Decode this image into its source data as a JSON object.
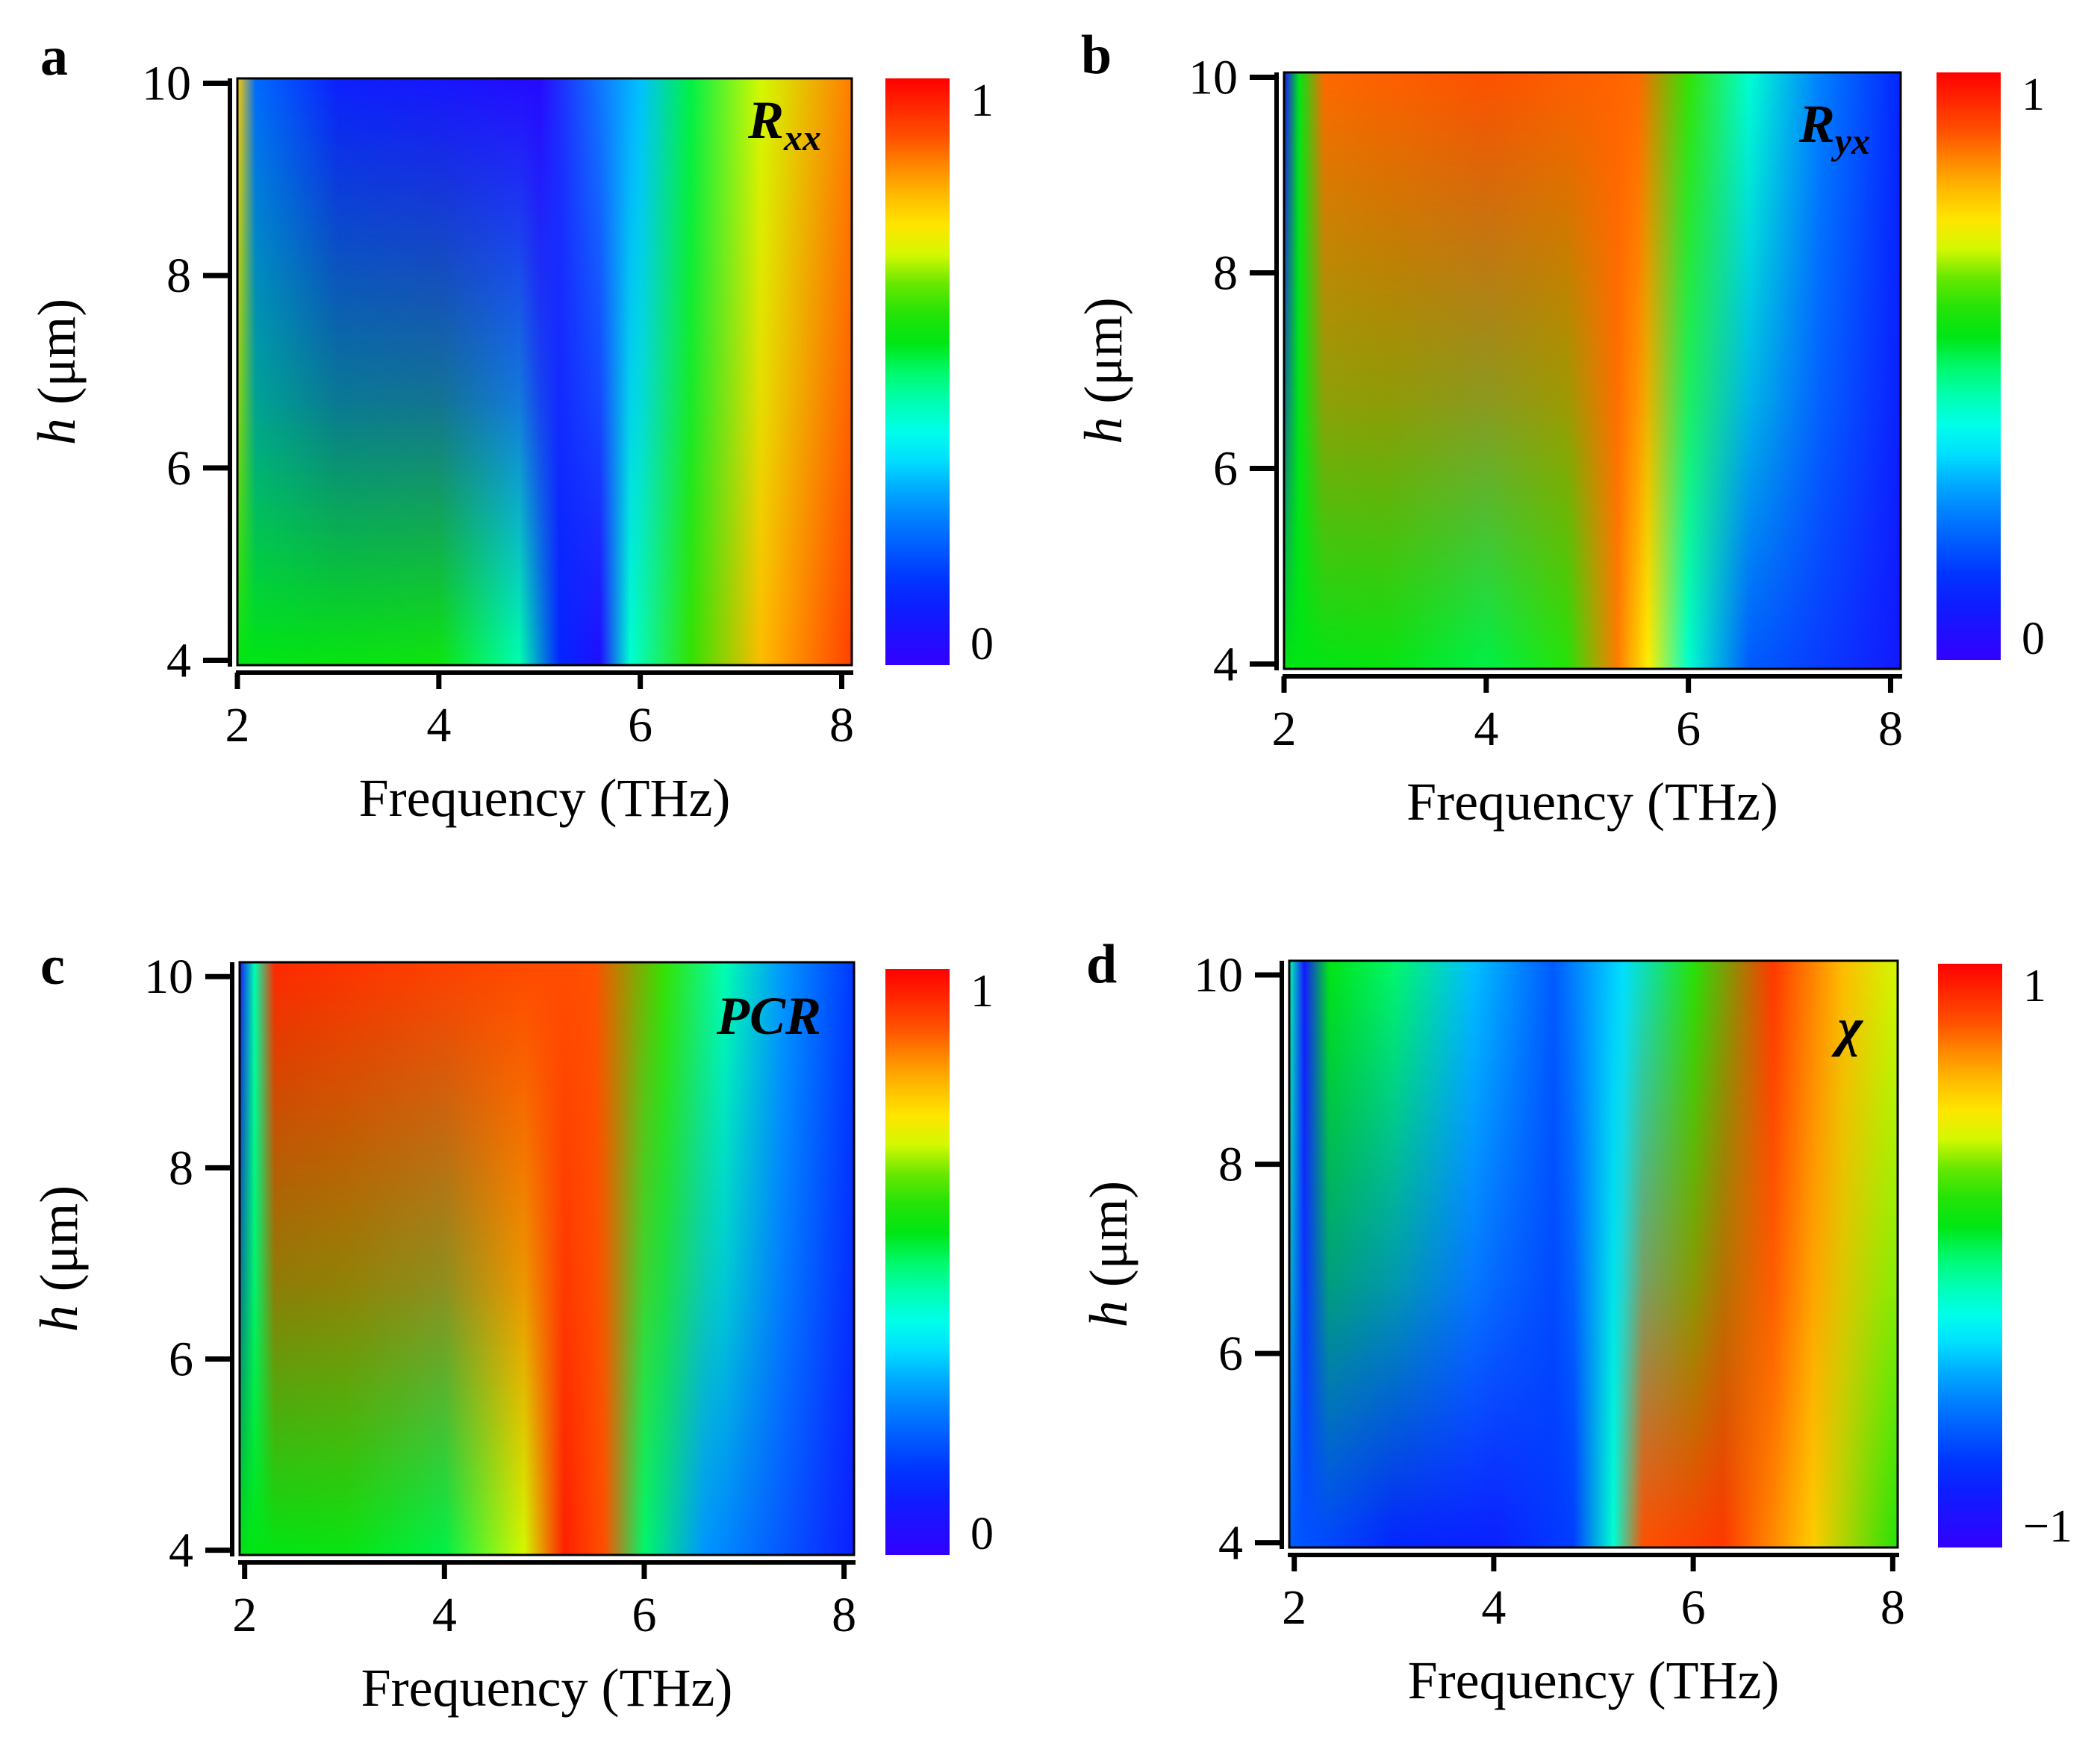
{
  "chart_data": [
    {
      "type": "heatmap",
      "panel_label": "a",
      "quantity": {
        "main": "R",
        "sub": "xx"
      },
      "xlabel": "Frequency (THz)",
      "ylabel": {
        "italic": "h",
        "rest": " (μm)"
      },
      "xlim": [
        2,
        8.1
      ],
      "ylim": [
        3.95,
        10.05
      ],
      "xticks": [
        "2",
        "4",
        "6",
        "8"
      ],
      "yticks": [
        "4",
        "6",
        "8",
        "10"
      ],
      "colorbar": {
        "min": "0",
        "max": "1"
      },
      "stops_10um": [
        {
          "x": 2.0,
          "v": 0.78
        },
        {
          "x": 2.18,
          "v": 0.22
        },
        {
          "x": 3.0,
          "v": 0.1
        },
        {
          "x": 4.0,
          "v": 0.07
        },
        {
          "x": 5.0,
          "v": 0.03
        },
        {
          "x": 6.0,
          "v": 0.32
        },
        {
          "x": 6.5,
          "v": 0.52
        },
        {
          "x": 7.2,
          "v": 0.7
        },
        {
          "x": 8.1,
          "v": 0.86
        }
      ],
      "stops_4um": [
        {
          "x": 2.0,
          "v": 0.55
        },
        {
          "x": 3.0,
          "v": 0.56
        },
        {
          "x": 4.0,
          "v": 0.57
        },
        {
          "x": 4.8,
          "v": 0.45
        },
        {
          "x": 5.2,
          "v": 0.12
        },
        {
          "x": 5.6,
          "v": 0.05
        },
        {
          "x": 5.9,
          "v": 0.42
        },
        {
          "x": 6.5,
          "v": 0.62
        },
        {
          "x": 7.2,
          "v": 0.8
        },
        {
          "x": 8.1,
          "v": 0.92
        }
      ]
    },
    {
      "type": "heatmap",
      "panel_label": "b",
      "quantity": {
        "main": "R",
        "sub": "yx"
      },
      "xlabel": "Frequency (THz)",
      "ylabel": {
        "italic": "h",
        "rest": " (μm)"
      },
      "xlim": [
        2,
        8.1
      ],
      "ylim": [
        3.95,
        10.05
      ],
      "xticks": [
        "2",
        "4",
        "6",
        "8"
      ],
      "yticks": [
        "4",
        "6",
        "8",
        "10"
      ],
      "colorbar": {
        "min": "0",
        "max": "1"
      },
      "stops_10um": [
        {
          "x": 2.0,
          "v": 0.05
        },
        {
          "x": 2.15,
          "v": 0.55
        },
        {
          "x": 2.4,
          "v": 0.88
        },
        {
          "x": 4.0,
          "v": 0.9
        },
        {
          "x": 5.5,
          "v": 0.88
        },
        {
          "x": 6.0,
          "v": 0.62
        },
        {
          "x": 6.6,
          "v": 0.42
        },
        {
          "x": 7.3,
          "v": 0.25
        },
        {
          "x": 8.1,
          "v": 0.12
        }
      ],
      "stops_4um": [
        {
          "x": 2.0,
          "v": 0.55
        },
        {
          "x": 3.0,
          "v": 0.56
        },
        {
          "x": 4.0,
          "v": 0.52
        },
        {
          "x": 4.8,
          "v": 0.6
        },
        {
          "x": 5.3,
          "v": 0.86
        },
        {
          "x": 5.6,
          "v": 0.74
        },
        {
          "x": 6.0,
          "v": 0.42
        },
        {
          "x": 6.6,
          "v": 0.2
        },
        {
          "x": 8.1,
          "v": 0.08
        }
      ]
    },
    {
      "type": "heatmap",
      "panel_label": "c",
      "quantity": {
        "main": "PCR",
        "sub": ""
      },
      "xlabel": "Frequency (THz)",
      "ylabel": {
        "italic": "h",
        "rest": " (μm)"
      },
      "xlim": [
        1.95,
        8.1
      ],
      "ylim": [
        3.95,
        10.15
      ],
      "xticks": [
        "2",
        "4",
        "6",
        "8"
      ],
      "yticks": [
        "4",
        "6",
        "8",
        "10"
      ],
      "colorbar": {
        "min": "0",
        "max": "1"
      },
      "stops_10um": [
        {
          "x": 1.95,
          "v": 0.08
        },
        {
          "x": 2.1,
          "v": 0.45
        },
        {
          "x": 2.3,
          "v": 0.95
        },
        {
          "x": 4.0,
          "v": 0.92
        },
        {
          "x": 5.5,
          "v": 0.9
        },
        {
          "x": 6.2,
          "v": 0.62
        },
        {
          "x": 6.8,
          "v": 0.45
        },
        {
          "x": 7.4,
          "v": 0.28
        },
        {
          "x": 8.1,
          "v": 0.15
        }
      ],
      "stops_4um": [
        {
          "x": 1.95,
          "v": 0.55
        },
        {
          "x": 3.0,
          "v": 0.56
        },
        {
          "x": 4.0,
          "v": 0.52
        },
        {
          "x": 4.8,
          "v": 0.7
        },
        {
          "x": 5.2,
          "v": 0.96
        },
        {
          "x": 5.6,
          "v": 0.9
        },
        {
          "x": 6.0,
          "v": 0.5
        },
        {
          "x": 6.6,
          "v": 0.28
        },
        {
          "x": 8.1,
          "v": 0.1
        }
      ]
    },
    {
      "type": "heatmap",
      "panel_label": "d",
      "quantity": {
        "main": "χ",
        "sub": ""
      },
      "xlabel": "Frequency (THz)",
      "ylabel": {
        "italic": "h",
        "rest": " (μm)"
      },
      "xlim": [
        1.95,
        8.05
      ],
      "ylim": [
        3.95,
        10.15
      ],
      "xticks": [
        "2",
        "4",
        "6",
        "8"
      ],
      "yticks": [
        "4",
        "6",
        "8",
        "10"
      ],
      "colorbar": {
        "min": "−1",
        "max": "1"
      },
      "stops_10um": [
        {
          "x": 1.95,
          "v": 0.45
        },
        {
          "x": 2.1,
          "v": 0.08
        },
        {
          "x": 2.35,
          "v": 0.55
        },
        {
          "x": 3.0,
          "v": 0.5
        },
        {
          "x": 3.8,
          "v": 0.32
        },
        {
          "x": 4.6,
          "v": 0.2
        },
        {
          "x": 5.3,
          "v": 0.35
        },
        {
          "x": 6.0,
          "v": 0.6
        },
        {
          "x": 6.8,
          "v": 0.93
        },
        {
          "x": 7.5,
          "v": 0.8
        },
        {
          "x": 8.05,
          "v": 0.7
        }
      ],
      "stops_4um": [
        {
          "x": 1.95,
          "v": 0.2
        },
        {
          "x": 3.0,
          "v": 0.12
        },
        {
          "x": 4.0,
          "v": 0.1
        },
        {
          "x": 4.8,
          "v": 0.16
        },
        {
          "x": 5.2,
          "v": 0.42
        },
        {
          "x": 5.5,
          "v": 0.9
        },
        {
          "x": 6.3,
          "v": 0.93
        },
        {
          "x": 7.2,
          "v": 0.78
        },
        {
          "x": 8.05,
          "v": 0.6
        }
      ]
    }
  ]
}
